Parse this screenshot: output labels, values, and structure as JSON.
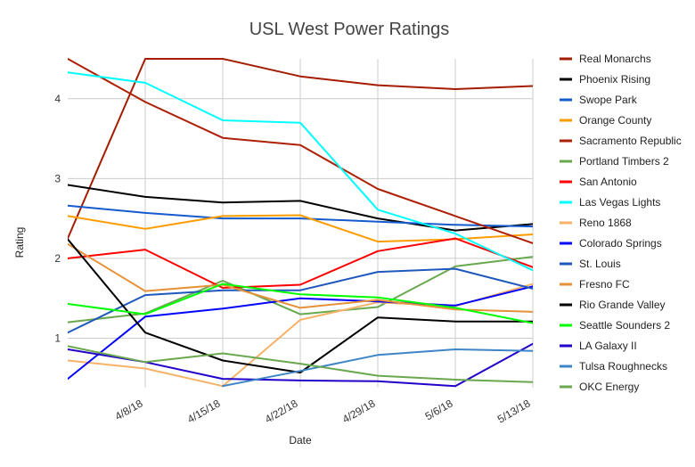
{
  "chart_data": {
    "type": "line",
    "title": "USL West Power Ratings",
    "xlabel": "Date",
    "ylabel": "Rating",
    "x": [
      0,
      1,
      2,
      3,
      4,
      5,
      6
    ],
    "xticks": [
      {
        "x": 1,
        "label": "4/8/18"
      },
      {
        "x": 2,
        "label": "4/15/18"
      },
      {
        "x": 3,
        "label": "4/22/18"
      },
      {
        "x": 4,
        "label": "4/29/18"
      },
      {
        "x": 5,
        "label": "5/6/18"
      },
      {
        "x": 6,
        "label": "5/13/18"
      }
    ],
    "yticks": [
      1,
      2,
      3,
      4
    ],
    "xlim": [
      0,
      6
    ],
    "ylim": [
      0.38,
      4.5
    ],
    "grid": true,
    "legend": "right",
    "series": [
      {
        "name": "Real Monarchs",
        "color": "#a41d03",
        "values": [
          2.25,
          4.5,
          4.5,
          4.28,
          4.17,
          4.12,
          4.16
        ]
      },
      {
        "name": "Phoenix Rising",
        "color": "#000000",
        "values": [
          2.92,
          2.77,
          2.7,
          2.72,
          2.5,
          2.35,
          2.43
        ]
      },
      {
        "name": "Swope Park",
        "color": "#155bce",
        "values": [
          2.66,
          2.57,
          2.5,
          2.5,
          2.46,
          2.42,
          2.4
        ]
      },
      {
        "name": "Orange County",
        "color": "#fd9c00",
        "values": [
          2.53,
          2.37,
          2.53,
          2.54,
          2.21,
          2.24,
          2.3
        ]
      },
      {
        "name": "Sacramento Republic",
        "color": "#ad2007",
        "values": [
          4.5,
          3.96,
          3.51,
          3.42,
          2.87,
          2.53,
          2.19
        ]
      },
      {
        "name": "Portland Timbers 2",
        "color": "#6aa84f",
        "values": [
          1.2,
          1.31,
          1.72,
          1.3,
          1.39,
          1.9,
          2.02
        ]
      },
      {
        "name": "San Antonio",
        "color": "#fd0000",
        "values": [
          2.0,
          2.11,
          1.63,
          1.67,
          2.09,
          2.25,
          1.89
        ]
      },
      {
        "name": "Las Vegas Lights",
        "color": "#01fefe",
        "values": [
          4.33,
          4.2,
          3.73,
          3.7,
          2.61,
          2.31,
          1.85
        ]
      },
      {
        "name": "Reno 1868",
        "color": "#f7b268",
        "values": [
          0.72,
          0.62,
          0.4,
          1.23,
          1.45,
          1.4,
          1.68
        ]
      },
      {
        "name": "Colorado Springs",
        "color": "#0404fd",
        "values": [
          0.49,
          1.27,
          1.37,
          1.5,
          1.46,
          1.41,
          1.65
        ]
      },
      {
        "name": "St. Louis",
        "color": "#1f58bd",
        "values": [
          1.07,
          1.54,
          1.6,
          1.6,
          1.83,
          1.87,
          1.62
        ]
      },
      {
        "name": "Fresno FC",
        "color": "#e69138",
        "values": [
          2.18,
          1.59,
          1.67,
          1.38,
          1.48,
          1.36,
          1.33
        ]
      },
      {
        "name": "Rio Grande Valley",
        "color": "#000000",
        "values": [
          2.24,
          1.07,
          0.72,
          0.57,
          1.26,
          1.21,
          1.21
        ]
      },
      {
        "name": "Seattle Sounders 2",
        "color": "#00ff00",
        "values": [
          1.43,
          1.3,
          1.68,
          1.55,
          1.51,
          1.38,
          1.19
        ]
      },
      {
        "name": "LA Galaxy II",
        "color": "#2200cc",
        "values": [
          0.86,
          0.7,
          0.49,
          0.47,
          0.46,
          0.4,
          0.93
        ]
      },
      {
        "name": "Tulsa Roughnecks",
        "color": "#3d85c6",
        "values": [
          null,
          null,
          0.4,
          0.59,
          0.79,
          0.86,
          0.84
        ]
      },
      {
        "name": "OKC Energy",
        "color": "#6aa84f",
        "values": [
          0.9,
          0.7,
          0.81,
          0.68,
          0.53,
          0.48,
          0.45
        ]
      }
    ]
  }
}
